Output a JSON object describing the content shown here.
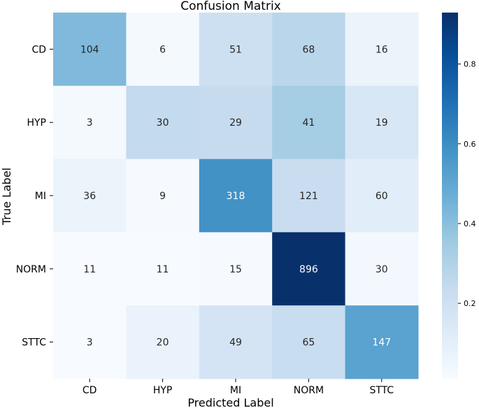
{
  "chart_data": {
    "type": "heatmap",
    "title": "Confusion Matrix",
    "xlabel": "Predicted Label",
    "ylabel": "True Label",
    "x_categories": [
      "CD",
      "HYP",
      "MI",
      "NORM",
      "STTC"
    ],
    "y_categories": [
      "CD",
      "HYP",
      "MI",
      "NORM",
      "STTC"
    ],
    "values": [
      [
        104,
        6,
        51,
        68,
        16
      ],
      [
        3,
        30,
        29,
        41,
        19
      ],
      [
        36,
        9,
        318,
        121,
        60
      ],
      [
        11,
        11,
        15,
        896,
        30
      ],
      [
        3,
        20,
        49,
        65,
        147
      ]
    ],
    "normalized": [
      [
        0.423,
        0.024,
        0.207,
        0.276,
        0.065
      ],
      [
        0.024,
        0.246,
        0.238,
        0.336,
        0.156
      ],
      [
        0.066,
        0.017,
        0.586,
        0.223,
        0.11
      ],
      [
        0.012,
        0.012,
        0.016,
        0.929,
        0.031
      ],
      [
        0.011,
        0.071,
        0.173,
        0.229,
        0.518
      ]
    ],
    "colormap": "Blues",
    "colorbar": {
      "ticks": [
        "0.2",
        "0.4",
        "0.6",
        "0.8"
      ],
      "tick_values": [
        0.2,
        0.4,
        0.6,
        0.8
      ],
      "range": [
        0.011,
        0.929
      ]
    },
    "grid": false,
    "legend": "colorbar-right"
  }
}
